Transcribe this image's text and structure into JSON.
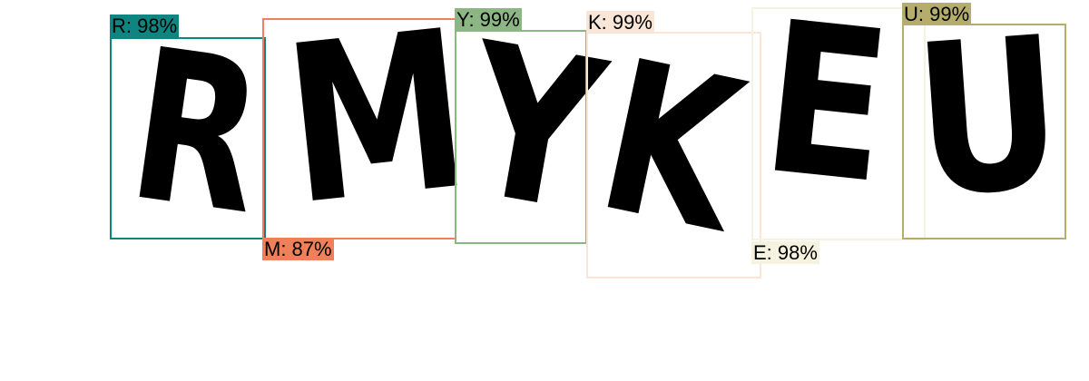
{
  "captcha": {
    "characters": [
      {
        "char": "R"
      },
      {
        "char": "M"
      },
      {
        "char": "Y"
      },
      {
        "char": "K"
      },
      {
        "char": "E"
      },
      {
        "char": "U"
      }
    ]
  },
  "detections": [
    {
      "label": "R: 98%",
      "char": "R",
      "confidence": 98,
      "color": "#0E8580"
    },
    {
      "label": "M: 87%",
      "char": "M",
      "confidence": 87,
      "color": "#EE8159"
    },
    {
      "label": "Y: 99%",
      "char": "Y",
      "confidence": 99,
      "color": "#8DB685"
    },
    {
      "label": "K: 99%",
      "char": "K",
      "confidence": 99,
      "color": "#F9E6D6"
    },
    {
      "label": "E: 98%",
      "char": "E",
      "confidence": 98,
      "color": "#F5F2DF"
    },
    {
      "label": "U: 99%",
      "char": "U",
      "confidence": 99,
      "color": "#B5AD6C"
    }
  ]
}
